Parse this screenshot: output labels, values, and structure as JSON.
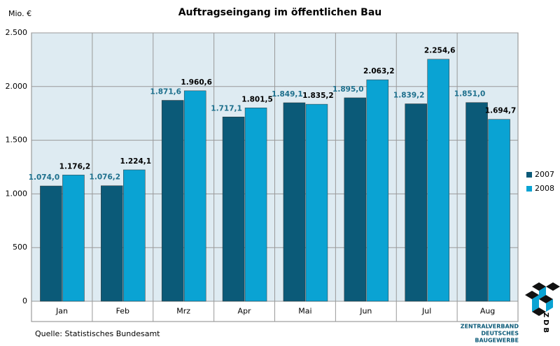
{
  "chart_data": {
    "type": "bar",
    "title": "Auftragseingang im öffentlichen Bau",
    "y_label": "Mio. €",
    "source": "Quelle: Statistisches Bundesamt",
    "logo": {
      "letters": "ZDB",
      "lines": [
        "ZENTRALVERBAND",
        "DEUTSCHES",
        "BAUGEWERBE"
      ]
    },
    "categories": [
      "Jan",
      "Feb",
      "Mrz",
      "Apr",
      "Mai",
      "Jun",
      "Jul",
      "Aug"
    ],
    "series": [
      {
        "name": "2007",
        "color": "#0b5a78",
        "values": [
          1074.0,
          1076.2,
          1871.6,
          1717.1,
          1849.1,
          1895.0,
          1839.2,
          1851.0
        ],
        "value_labels": [
          "1.074,0",
          "1.076,2",
          "1.871,6",
          "1.717,1",
          "1.849,1",
          "1.895,0",
          "1.839,2",
          "1.851,0"
        ]
      },
      {
        "name": "2008",
        "color": "#0aa3d3",
        "values": [
          1176.2,
          1224.1,
          1960.6,
          1801.5,
          1835.2,
          2063.2,
          2254.6,
          1694.7
        ],
        "value_labels": [
          "1.176,2",
          "1.224,1",
          "1.960,6",
          "1.801,5",
          "1.835,2",
          "2.063,2",
          "2.254,6",
          "1.694,7"
        ]
      }
    ],
    "ylim": [
      0,
      2500
    ],
    "yticks": [
      0,
      500,
      {
        "value": 1000,
        "label": "1.000"
      },
      {
        "value": 1500,
        "label": "1.500"
      },
      {
        "value": 2000,
        "label": "2.000"
      },
      {
        "value": 2500,
        "label": "2.500"
      }
    ],
    "grid": true
  }
}
